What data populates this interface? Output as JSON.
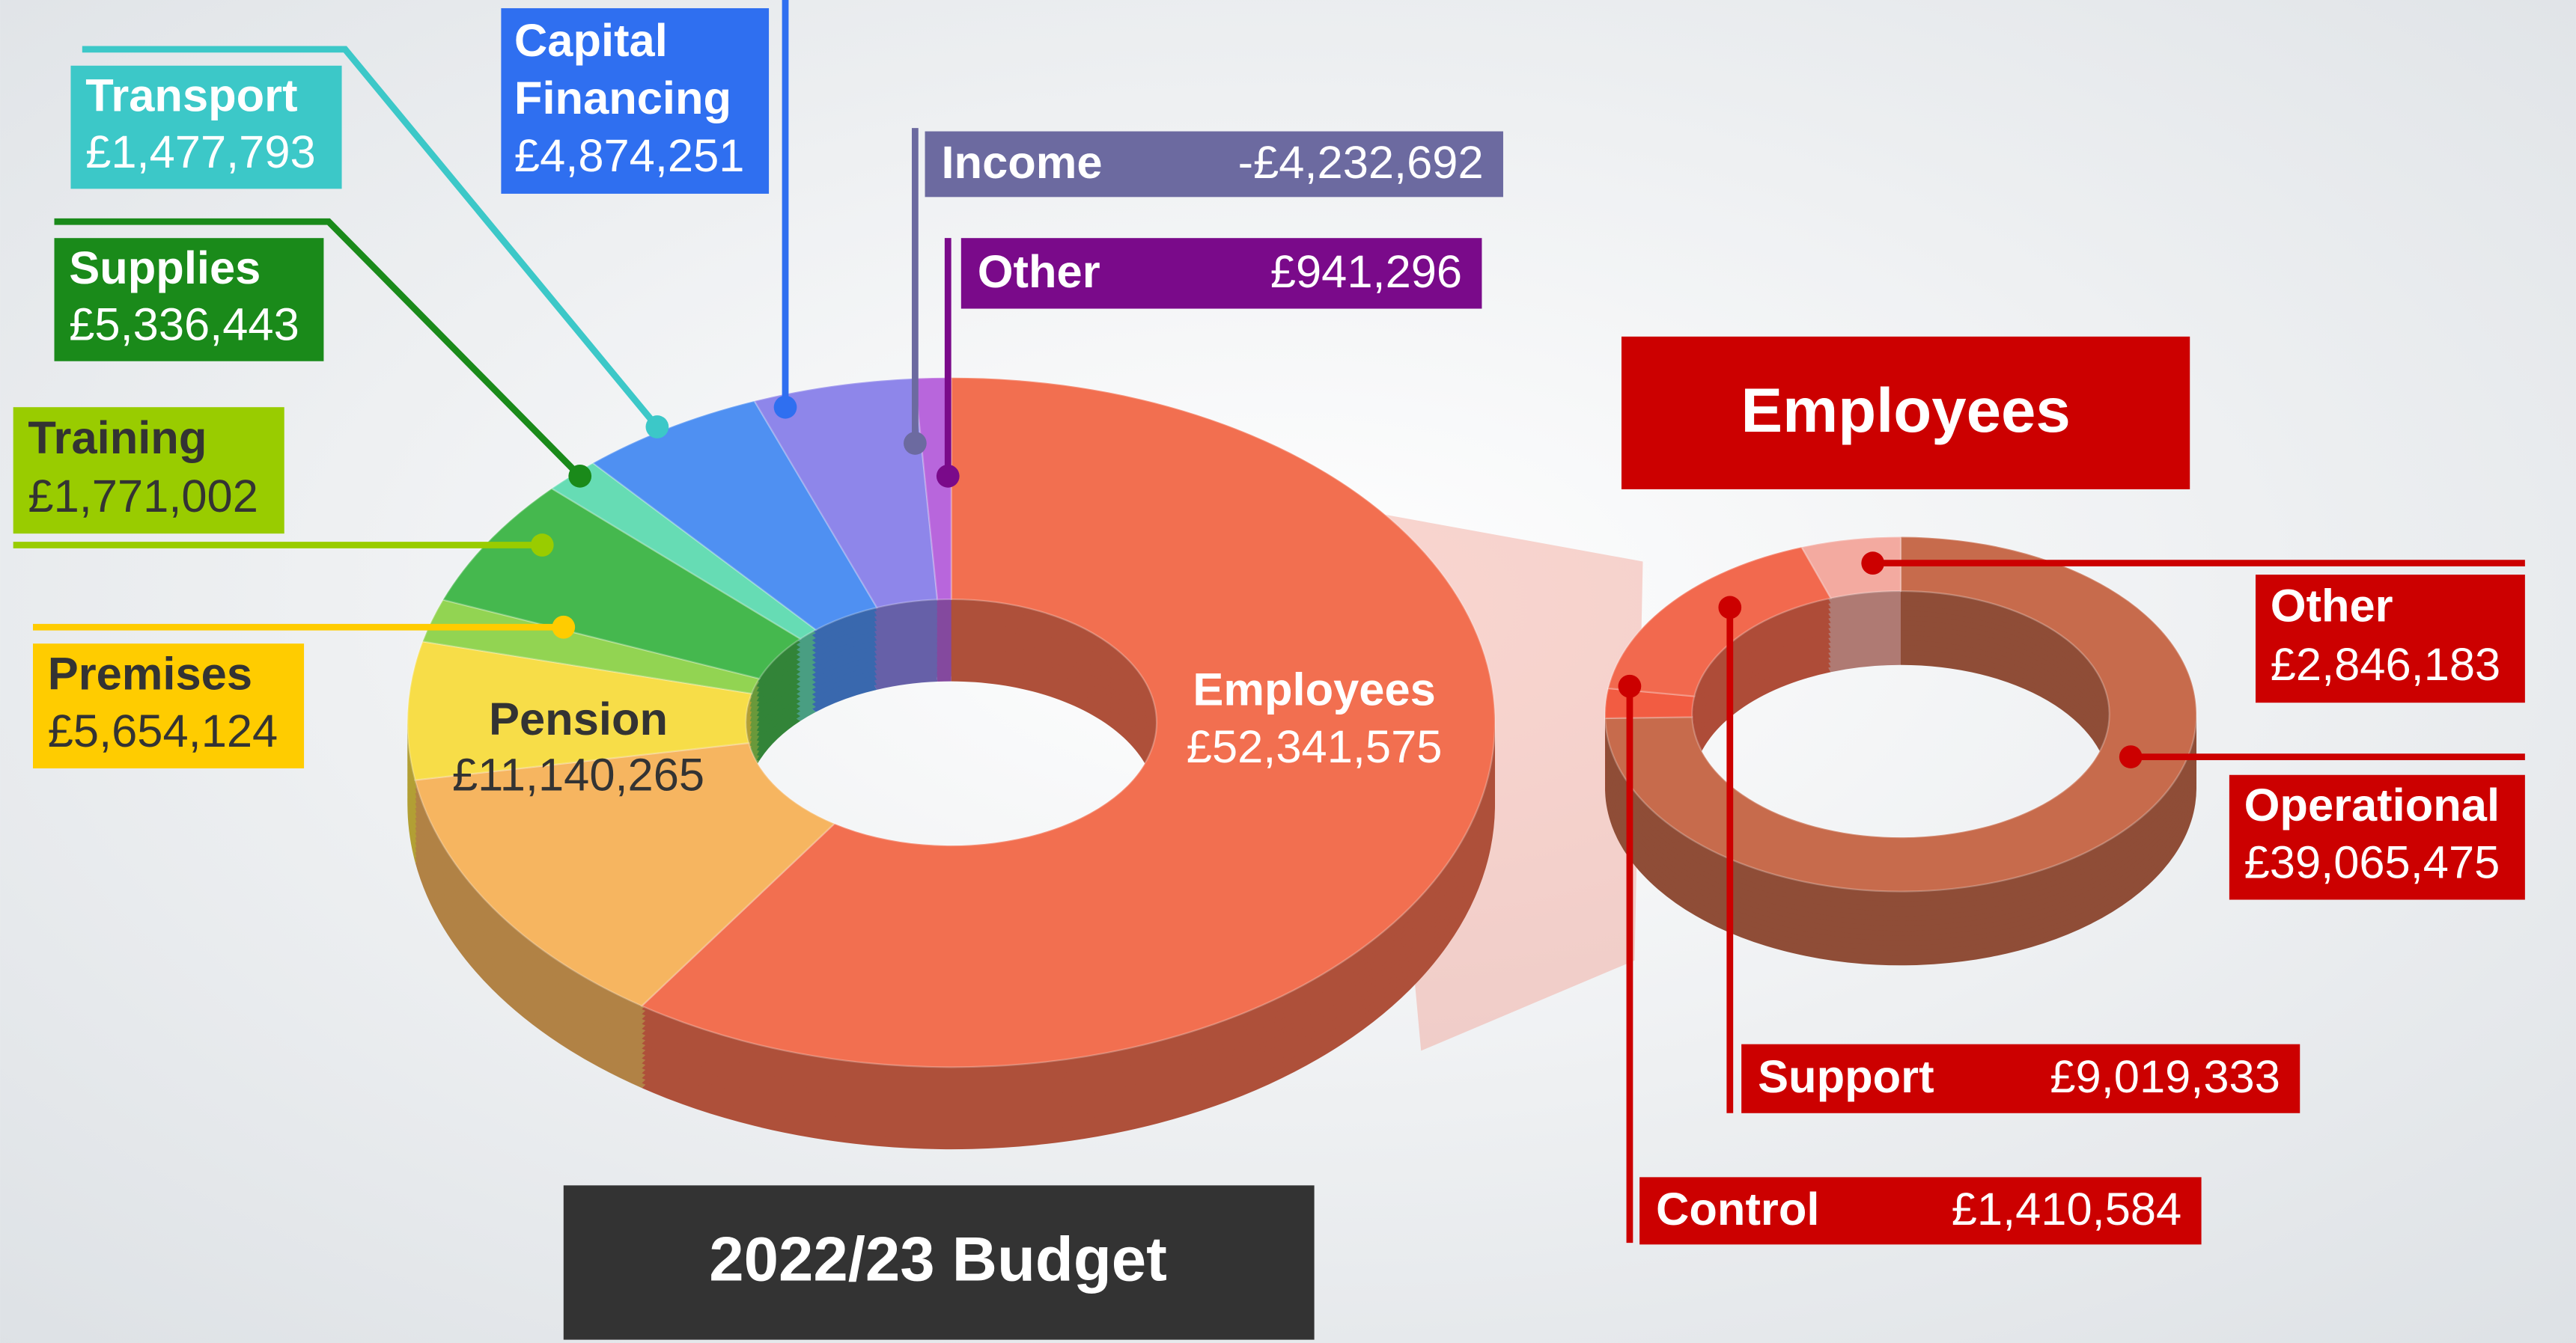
{
  "chart_data": [
    {
      "type": "pie",
      "title": "2022/23 Budget",
      "donut": true,
      "categories": [
        "Employees",
        "Pension",
        "Premises",
        "Training",
        "Supplies",
        "Transport",
        "Capital Financing",
        "Income",
        "Other"
      ],
      "values": [
        52341575,
        11140265,
        5654124,
        1771002,
        5336443,
        1477793,
        4874251,
        -4232692,
        941296
      ],
      "value_labels": [
        "£52,341,575",
        "£11,140,265",
        "£5,654,124",
        "£1,771,002",
        "£5,336,443",
        "£1,477,793",
        "£4,874,251",
        "-£4,232,692",
        "£941,296"
      ],
      "colors": [
        "#f26f50",
        "#f6b560",
        "#f7dd48",
        "#92d452",
        "#45b84e",
        "#66dcb4",
        "#4f90f2",
        "#8e86ea",
        "#b866dc"
      ]
    },
    {
      "type": "pie",
      "title": "Employees",
      "donut": true,
      "categories": [
        "Operational",
        "Control",
        "Support",
        "Other"
      ],
      "values": [
        39065475,
        1410584,
        9019333,
        2846183
      ],
      "value_labels": [
        "£39,065,475",
        "£1,410,584",
        "£9,019,333",
        "£2,846,183"
      ],
      "colors": [
        "#c76b4c",
        "#f25c42",
        "#f2694e",
        "#f3aaa0"
      ]
    }
  ]
}
